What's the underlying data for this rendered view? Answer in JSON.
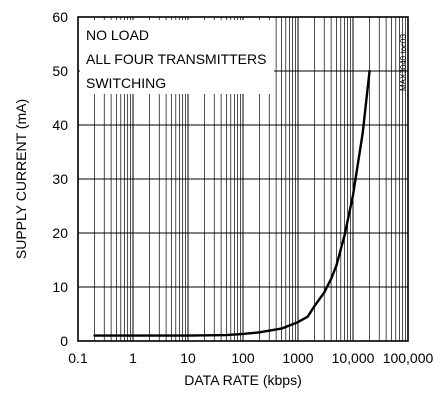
{
  "chart_data": {
    "type": "line",
    "x_scale": "log",
    "xlim": [
      0.1,
      100000
    ],
    "ylim": [
      0,
      60
    ],
    "x_ticks": [
      0.1,
      1,
      10,
      100,
      1000,
      10000,
      100000
    ],
    "x_tick_labels": [
      "0.1",
      "1",
      "10",
      "100",
      "1000",
      "10,000",
      "100,000"
    ],
    "y_ticks": [
      0,
      10,
      20,
      30,
      40,
      50,
      60
    ],
    "y_tick_labels": [
      "0",
      "10",
      "20",
      "30",
      "40",
      "50",
      "60"
    ],
    "xlabel": "DATA RATE (kbps)",
    "ylabel": "SUPPLY CURRENT (mA)",
    "annotations": [
      "NO LOAD",
      "ALL FOUR TRANSMITTERS",
      "SWITCHING"
    ],
    "side_label": "MAX3040 toc03",
    "grid": true,
    "series": [
      {
        "x": [
          0.2,
          1,
          10,
          50,
          100,
          200,
          500,
          1000,
          1500,
          2000,
          3000,
          4000,
          5000,
          7000,
          10000,
          15000,
          20000
        ],
        "y": [
          1.0,
          1.0,
          1.0,
          1.1,
          1.3,
          1.6,
          2.3,
          3.5,
          4.5,
          6.5,
          9.0,
          11.5,
          14.0,
          19.5,
          27.0,
          38.5,
          50.0
        ]
      }
    ]
  }
}
